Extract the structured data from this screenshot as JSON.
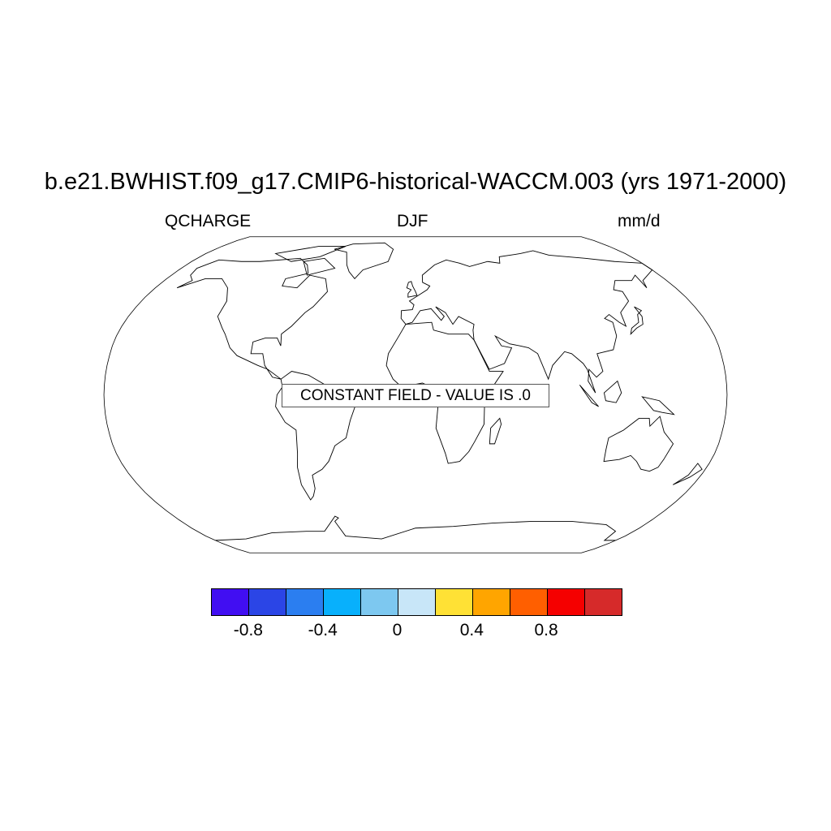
{
  "title": "b.e21.BWHIST.f09_g17.CMIP6-historical-WACCM.003 (yrs 1971-2000)",
  "left_subtitle": "QCHARGE",
  "center_subtitle": "DJF",
  "right_subtitle": "mm/d",
  "map": {
    "projection": "Robinson",
    "center_longitude": 0,
    "coastlines": true
  },
  "message": "CONSTANT FIELD - VALUE IS .0",
  "colorbar": {
    "colors": [
      "#410ef2",
      "#2b45e6",
      "#2b7ef0",
      "#08b0fc",
      "#7dc8f0",
      "#c8e6f8",
      "#ffe135",
      "#ffa500",
      "#ff5f00",
      "#f50000",
      "#d62a2a"
    ],
    "tick_labels": [
      "-0.8",
      "-0.4",
      "0",
      "0.4",
      "0.8"
    ],
    "tick_values": [
      -0.8,
      -0.4,
      0,
      0.4,
      0.8
    ],
    "levels": [
      -1.0,
      -0.8,
      -0.6,
      -0.4,
      -0.2,
      0,
      0.2,
      0.4,
      0.6,
      0.8,
      1.0
    ]
  }
}
